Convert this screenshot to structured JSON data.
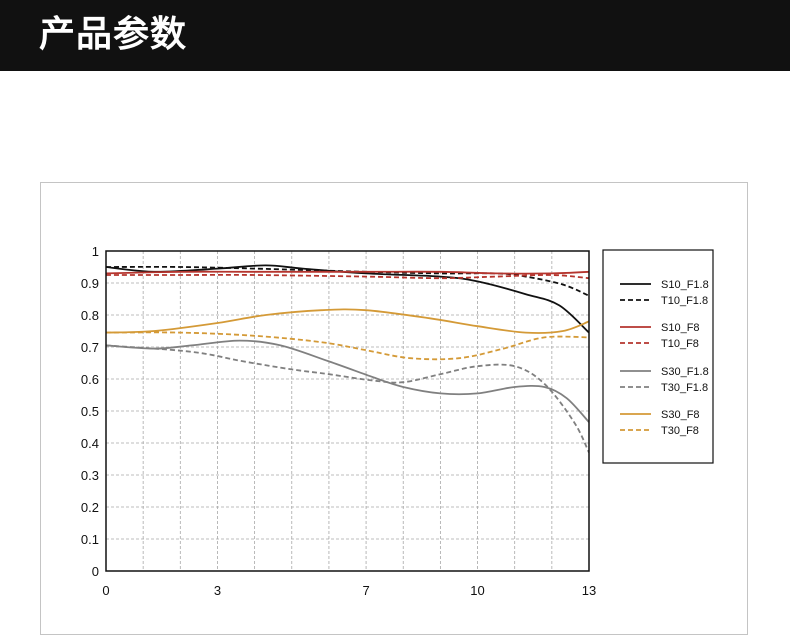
{
  "header": {
    "title": "产品参数"
  },
  "chart_data": {
    "type": "line",
    "title": "",
    "xlabel": "",
    "ylabel": "",
    "xlim": [
      0,
      13
    ],
    "ylim": [
      0,
      1
    ],
    "grid": true,
    "legend_position": "right",
    "x_ticks": [
      "0",
      "3",
      "7",
      "10",
      "13"
    ],
    "x_tick_values": [
      0,
      3,
      7,
      10,
      13
    ],
    "y_ticks": [
      "0",
      "0.1",
      "0.2",
      "0.3",
      "0.4",
      "0.5",
      "0.6",
      "0.7",
      "0.8",
      "0.9",
      "1"
    ],
    "y_tick_values": [
      0,
      0.1,
      0.2,
      0.3,
      0.4,
      0.5,
      0.6,
      0.7,
      0.8,
      0.9,
      1
    ],
    "series": [
      {
        "name": "S10_F1.8",
        "color": "#111111",
        "dashed": false,
        "points": [
          [
            0,
            0.95
          ],
          [
            1.3,
            0.935
          ],
          [
            3,
            0.945
          ],
          [
            4.3,
            0.955
          ],
          [
            5.3,
            0.945
          ],
          [
            7,
            0.93
          ],
          [
            9,
            0.92
          ],
          [
            10,
            0.905
          ],
          [
            11.3,
            0.865
          ],
          [
            12.2,
            0.83
          ],
          [
            13,
            0.745
          ]
        ]
      },
      {
        "name": "T10_F1.8",
        "color": "#111111",
        "dashed": true,
        "points": [
          [
            0,
            0.95
          ],
          [
            2,
            0.95
          ],
          [
            4,
            0.945
          ],
          [
            7,
            0.935
          ],
          [
            9,
            0.93
          ],
          [
            10.5,
            0.93
          ],
          [
            11.3,
            0.92
          ],
          [
            12.3,
            0.895
          ],
          [
            13,
            0.86
          ]
        ]
      },
      {
        "name": "S10_F8",
        "color": "#b5352e",
        "dashed": false,
        "points": [
          [
            0,
            0.93
          ],
          [
            2,
            0.935
          ],
          [
            4,
            0.935
          ],
          [
            7,
            0.935
          ],
          [
            9,
            0.935
          ],
          [
            10.5,
            0.93
          ],
          [
            12,
            0.93
          ],
          [
            13,
            0.935
          ]
        ]
      },
      {
        "name": "T10_F8",
        "color": "#b5352e",
        "dashed": true,
        "points": [
          [
            0,
            0.925
          ],
          [
            2,
            0.925
          ],
          [
            4,
            0.925
          ],
          [
            7,
            0.92
          ],
          [
            9,
            0.915
          ],
          [
            10.5,
            0.92
          ],
          [
            12,
            0.925
          ],
          [
            13,
            0.915
          ]
        ]
      },
      {
        "name": "S30_F1.8",
        "color": "#808080",
        "dashed": false,
        "points": [
          [
            0,
            0.705
          ],
          [
            1.3,
            0.695
          ],
          [
            2.3,
            0.705
          ],
          [
            3.6,
            0.72
          ],
          [
            4.7,
            0.705
          ],
          [
            6,
            0.655
          ],
          [
            7.2,
            0.605
          ],
          [
            8,
            0.575
          ],
          [
            9,
            0.555
          ],
          [
            10,
            0.555
          ],
          [
            11,
            0.575
          ],
          [
            11.8,
            0.575
          ],
          [
            12.4,
            0.54
          ],
          [
            13,
            0.465
          ]
        ]
      },
      {
        "name": "T30_F1.8",
        "color": "#808080",
        "dashed": true,
        "points": [
          [
            0,
            0.705
          ],
          [
            2.3,
            0.685
          ],
          [
            3.7,
            0.655
          ],
          [
            5,
            0.63
          ],
          [
            6,
            0.615
          ],
          [
            7.2,
            0.595
          ],
          [
            8,
            0.59
          ],
          [
            9,
            0.615
          ],
          [
            10,
            0.64
          ],
          [
            11,
            0.64
          ],
          [
            11.8,
            0.585
          ],
          [
            12.6,
            0.465
          ],
          [
            13,
            0.37
          ]
        ]
      },
      {
        "name": "S30_F8",
        "color": "#d49a37",
        "dashed": false,
        "points": [
          [
            0,
            0.745
          ],
          [
            1.3,
            0.75
          ],
          [
            3,
            0.775
          ],
          [
            4.3,
            0.8
          ],
          [
            5.8,
            0.815
          ],
          [
            7,
            0.815
          ],
          [
            8.7,
            0.79
          ],
          [
            10,
            0.765
          ],
          [
            11.3,
            0.745
          ],
          [
            12.3,
            0.75
          ],
          [
            13,
            0.78
          ]
        ]
      },
      {
        "name": "T30_F8",
        "color": "#d49a37",
        "dashed": true,
        "points": [
          [
            0,
            0.745
          ],
          [
            2,
            0.745
          ],
          [
            4,
            0.735
          ],
          [
            5.8,
            0.715
          ],
          [
            7,
            0.69
          ],
          [
            8.2,
            0.665
          ],
          [
            9.5,
            0.665
          ],
          [
            10.7,
            0.695
          ],
          [
            11.8,
            0.73
          ],
          [
            13,
            0.73
          ]
        ]
      }
    ]
  }
}
